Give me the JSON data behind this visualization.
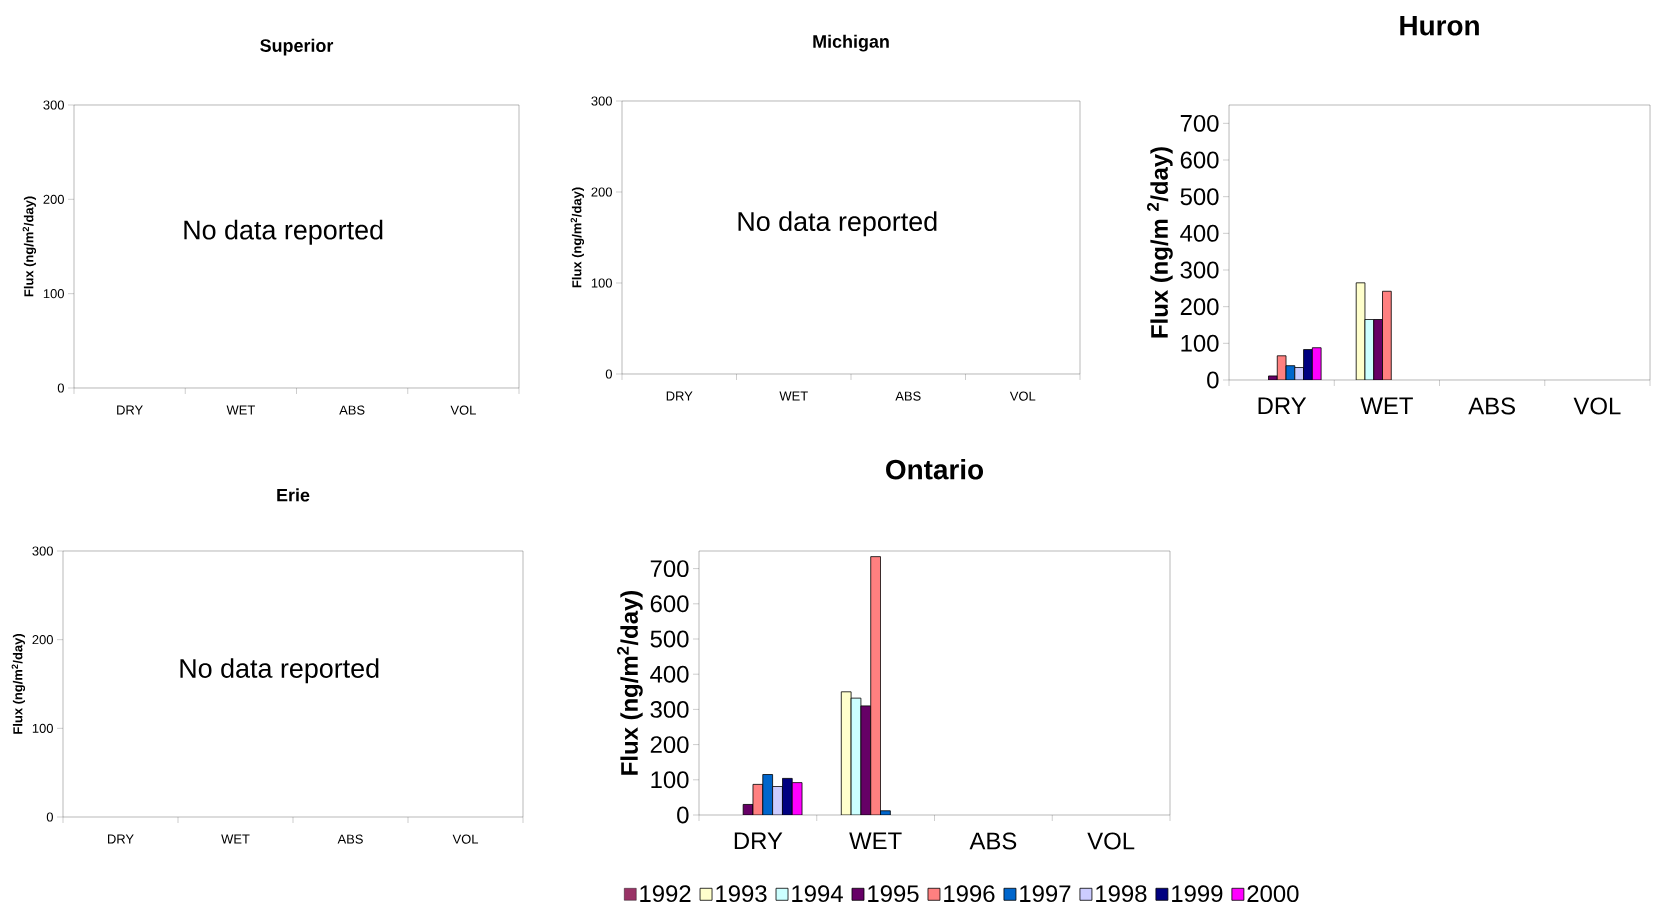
{
  "chart_data": [
    {
      "type": "bar",
      "title": "Superior",
      "ylabel": "Flux (ng/m$^{2}$/day)",
      "categories": [
        "DRY",
        "WET",
        "ABS",
        "VOL"
      ],
      "values": [
        null,
        null,
        null,
        null
      ],
      "ylim": [
        0,
        300
      ],
      "yticks": [
        0,
        100,
        200,
        300
      ],
      "annotations": [
        "No data reported"
      ]
    },
    {
      "type": "bar",
      "title": "Michigan",
      "ylabel": "Flux (ng/m$^{2}$/day)",
      "categories": [
        "DRY",
        "WET",
        "ABS",
        "VOL"
      ],
      "values": [
        null,
        null,
        null,
        null
      ],
      "ylim": [
        0,
        300
      ],
      "yticks": [
        0,
        100,
        200,
        300
      ],
      "annotations": [
        "No data reported"
      ]
    },
    {
      "type": "bar",
      "title": "Huron",
      "ylabel": "Flux (ng/m $^{2}$/day)",
      "categories": [
        "DRY",
        "WET",
        "ABS",
        "VOL"
      ],
      "ylim": [
        0,
        750
      ],
      "yticks": [
        0,
        100,
        200,
        300,
        400,
        500,
        600,
        700
      ],
      "series": [
        {
          "color": "#993366",
          "values": [
            null,
            null,
            null,
            null
          ]
        },
        {
          "color": "#ffffcc",
          "values": [
            null,
            265,
            null,
            null
          ]
        },
        {
          "color": "#ccffff",
          "values": [
            null,
            165,
            null,
            null
          ]
        },
        {
          "color": "#660066",
          "values": [
            11,
            165,
            null,
            null
          ]
        },
        {
          "color": "#ff8080",
          "values": [
            66,
            242,
            null,
            null
          ]
        },
        {
          "color": "#0066cc",
          "values": [
            39,
            null,
            null,
            null
          ]
        },
        {
          "color": "#ccccff",
          "values": [
            34,
            null,
            null,
            null
          ]
        },
        {
          "color": "#000080",
          "values": [
            83,
            null,
            null,
            null
          ]
        },
        {
          "color": "#ff00ff",
          "values": [
            88,
            null,
            null,
            null
          ]
        }
      ]
    },
    {
      "type": "bar",
      "title": "Erie",
      "ylabel": "Flux (ng/m$^{2}$/day)",
      "categories": [
        "DRY",
        "WET",
        "ABS",
        "VOL"
      ],
      "values": [
        null,
        null,
        null,
        null
      ],
      "ylim": [
        0,
        300
      ],
      "yticks": [
        0,
        100,
        200,
        300
      ],
      "annotations": [
        "No data reported"
      ]
    },
    {
      "type": "bar",
      "title": "Ontario",
      "ylabel": "Flux (ng/m$^{2}$/day)",
      "categories": [
        "DRY",
        "WET",
        "ABS",
        "VOL"
      ],
      "ylim": [
        0,
        750
      ],
      "yticks": [
        0,
        100,
        200,
        300,
        400,
        500,
        600,
        700
      ],
      "legend": "bottom",
      "series": [
        {
          "name": "1992",
          "color": "#993366",
          "values": [
            null,
            null,
            null,
            null
          ]
        },
        {
          "name": "1993",
          "color": "#ffffcc",
          "values": [
            null,
            350,
            null,
            null
          ]
        },
        {
          "name": "1994",
          "color": "#ccffff",
          "values": [
            null,
            332,
            null,
            null
          ]
        },
        {
          "name": "1995",
          "color": "#660066",
          "values": [
            30,
            310,
            null,
            null
          ]
        },
        {
          "name": "1996",
          "color": "#ff8080",
          "values": [
            87,
            734,
            null,
            null
          ]
        },
        {
          "name": "1997",
          "color": "#0066cc",
          "values": [
            115,
            12,
            null,
            null
          ]
        },
        {
          "name": "1998",
          "color": "#ccccff",
          "values": [
            81,
            null,
            null,
            null
          ]
        },
        {
          "name": "1999",
          "color": "#000080",
          "values": [
            104,
            null,
            null,
            null
          ]
        },
        {
          "name": "2000",
          "color": "#ff00ff",
          "values": [
            92,
            null,
            null,
            null
          ]
        }
      ]
    }
  ]
}
